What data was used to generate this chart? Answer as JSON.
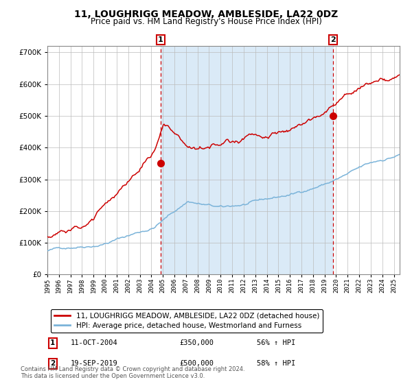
{
  "title": "11, LOUGHRIGG MEADOW, AMBLESIDE, LA22 0DZ",
  "subtitle": "Price paid vs. HM Land Registry's House Price Index (HPI)",
  "ylim": [
    0,
    720000
  ],
  "yticks": [
    0,
    100000,
    200000,
    300000,
    400000,
    500000,
    600000,
    700000
  ],
  "ytick_labels": [
    "£0",
    "£100K",
    "£200K",
    "£300K",
    "£400K",
    "£500K",
    "£600K",
    "£700K"
  ],
  "hpi_color": "#7ab3d9",
  "price_color": "#cc0000",
  "marker_color": "#cc0000",
  "vline_color": "#cc0000",
  "shade_color": "#daeaf7",
  "grid_color": "#bbbbbb",
  "bg_color": "#ffffff",
  "point1_x": 2004.79,
  "point1_y": 350000,
  "point1_label": "1",
  "point2_x": 2019.72,
  "point2_y": 500000,
  "point2_label": "2",
  "legend_line1": "11, LOUGHRIGG MEADOW, AMBLESIDE, LA22 0DZ (detached house)",
  "legend_line2": "HPI: Average price, detached house, Westmorland and Furness",
  "table_row1_num": "1",
  "table_row1_date": "11-OCT-2004",
  "table_row1_price": "£350,000",
  "table_row1_hpi": "56% ↑ HPI",
  "table_row2_num": "2",
  "table_row2_date": "19-SEP-2019",
  "table_row2_price": "£500,000",
  "table_row2_hpi": "58% ↑ HPI",
  "footnote": "Contains HM Land Registry data © Crown copyright and database right 2024.\nThis data is licensed under the Open Government Licence v3.0.",
  "xlim_start": 1995.0,
  "xlim_end": 2025.5
}
